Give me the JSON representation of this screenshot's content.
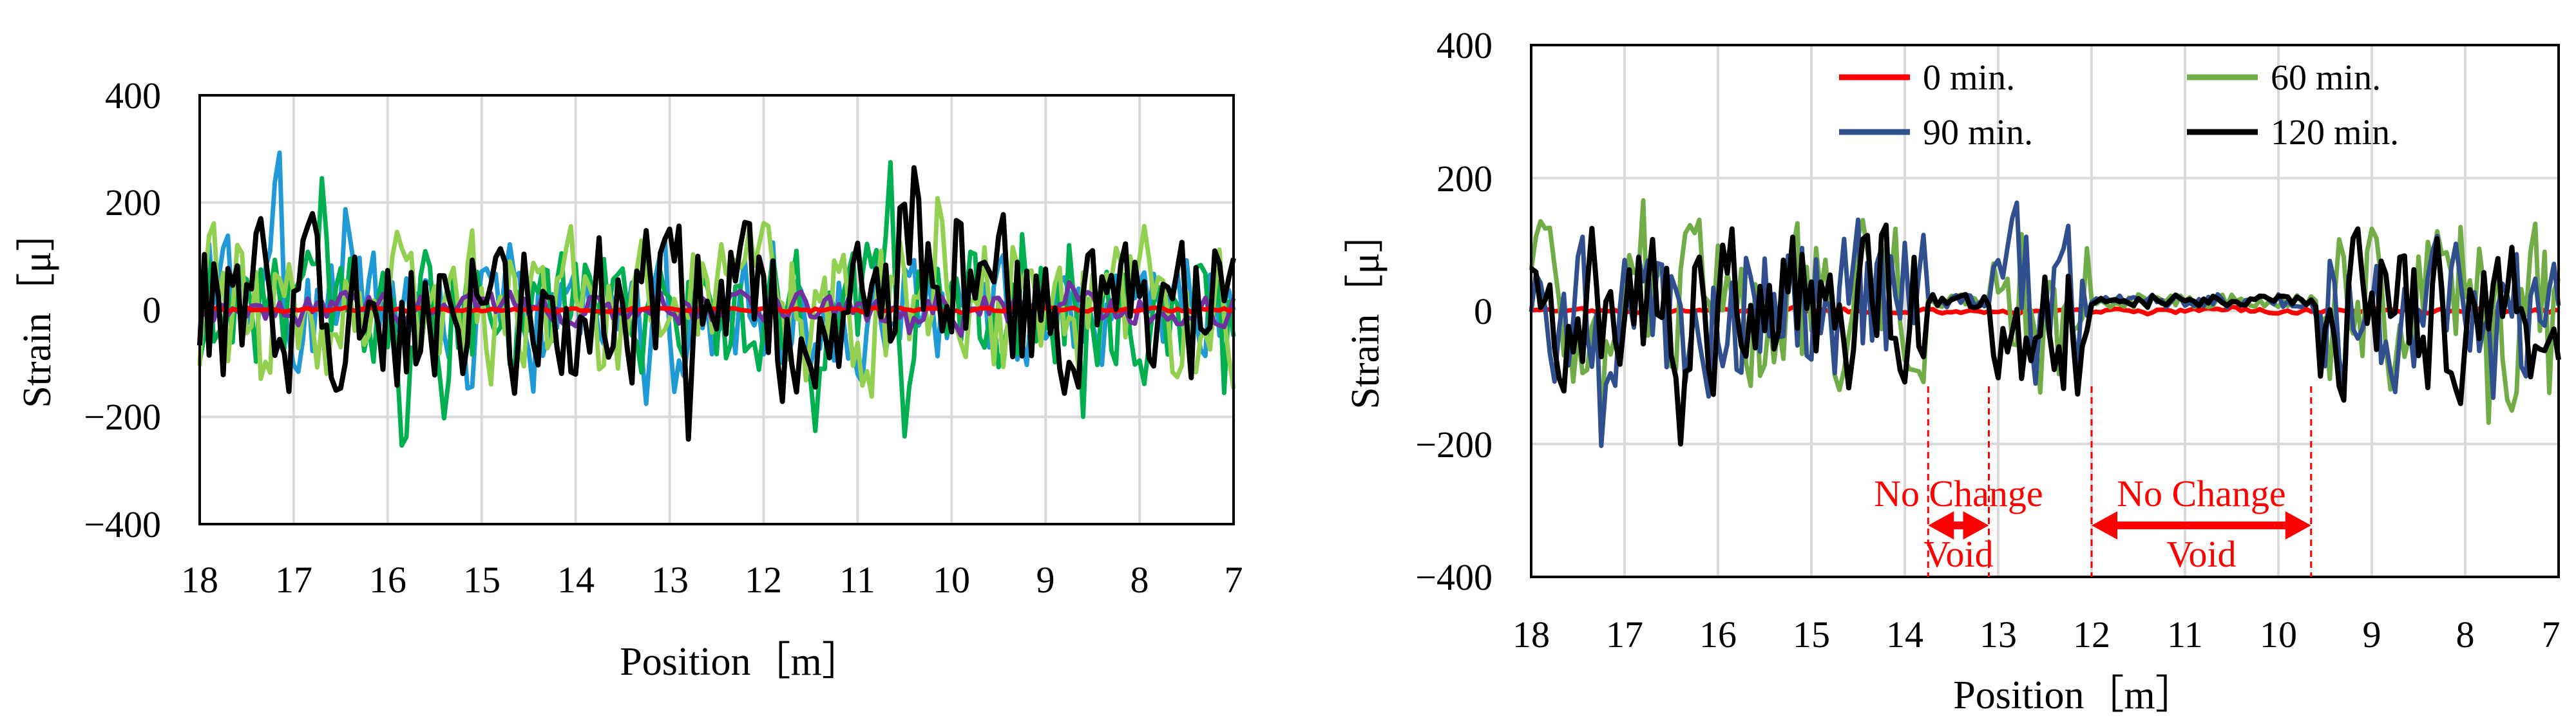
{
  "chart_data": [
    {
      "type": "line",
      "xlabel": "Position［m］",
      "ylabel": "Strain［μ］",
      "xlim": [
        18,
        7
      ],
      "ylim": [
        -400,
        400
      ],
      "xticks": [
        "18",
        "17",
        "16",
        "15",
        "14",
        "13",
        "12",
        "11",
        "10",
        "9",
        "8",
        "7"
      ],
      "yticks": [
        "400",
        "200",
        "0",
        "−200",
        "−400"
      ],
      "grid": true,
      "series": [
        {
          "color": "#1f9ad6",
          "amplitude": 95,
          "seed": 11
        },
        {
          "color": "#00b050",
          "amplitude": 105,
          "seed": 23
        },
        {
          "color": "#92d050",
          "amplitude": 120,
          "seed": 37
        },
        {
          "color": "#7030a0",
          "amplitude": 25,
          "seed": 41
        },
        {
          "color": "#ff0000",
          "amplitude": 3,
          "seed": 5
        },
        {
          "color": "#000000",
          "amplitude": 125,
          "seed": 53
        }
      ]
    },
    {
      "type": "line",
      "xlabel": "Position［m］",
      "ylabel": "Strain［μ］",
      "xlim": [
        18,
        7
      ],
      "ylim": [
        -400,
        400
      ],
      "xticks": [
        "18",
        "17",
        "16",
        "15",
        "14",
        "13",
        "12",
        "11",
        "10",
        "9",
        "8",
        "7"
      ],
      "yticks": [
        "400",
        "200",
        "0",
        "−200",
        "−400"
      ],
      "grid": true,
      "legend": "top",
      "series": [
        {
          "name": "0 min.",
          "color": "#ff0000",
          "amplitude": 3,
          "seed": 3
        },
        {
          "name": "60 min.",
          "color": "#70ad47",
          "amplitude": 110,
          "seed": 19
        },
        {
          "name": "90 min.",
          "color": "#2f4f8f",
          "amplitude": 110,
          "seed": 29
        },
        {
          "name": "120 min.",
          "color": "#000000",
          "amplitude": 100,
          "seed": 47
        }
      ],
      "annotations": [
        {
          "label_top": "No Change",
          "label_bottom": "Void",
          "from": 13.75,
          "to": 13.1
        },
        {
          "label_top": "No Change",
          "label_bottom": "Void",
          "from": 12.0,
          "to": 9.65
        }
      ]
    }
  ]
}
